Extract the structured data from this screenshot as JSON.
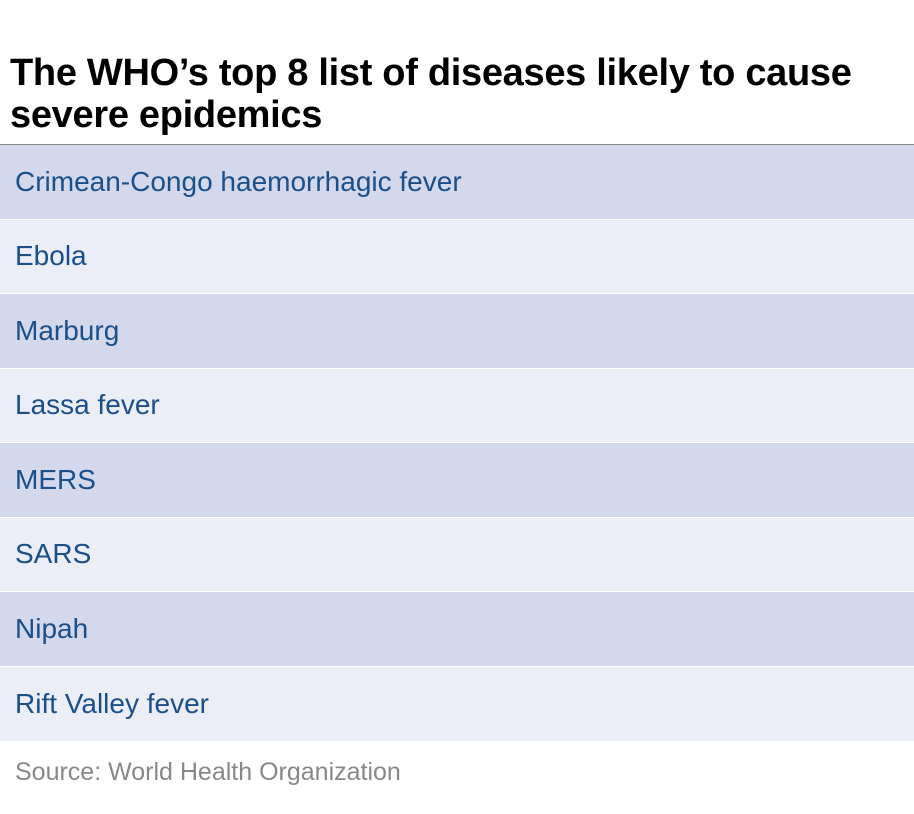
{
  "title": "The WHO’s top 8 list of diseases likely to cause severe epidemics",
  "source": "Source: World Health Organization",
  "colors": {
    "row_dark": "#d3d8ec",
    "row_light": "#ebedf7",
    "text_blue": "#1a4f8a",
    "source_gray": "#888888"
  },
  "chart_data": {
    "type": "table",
    "title": "The WHO’s top 8 list of diseases likely to cause severe epidemics",
    "columns": [],
    "rows": [
      [
        "Crimean-Congo haemorrhagic fever"
      ],
      [
        "Ebola"
      ],
      [
        "Marburg"
      ],
      [
        "Lassa fever"
      ],
      [
        "MERS"
      ],
      [
        "SARS"
      ],
      [
        "Nipah"
      ],
      [
        "Rift Valley fever"
      ]
    ],
    "source": "Source: World Health Organization"
  }
}
